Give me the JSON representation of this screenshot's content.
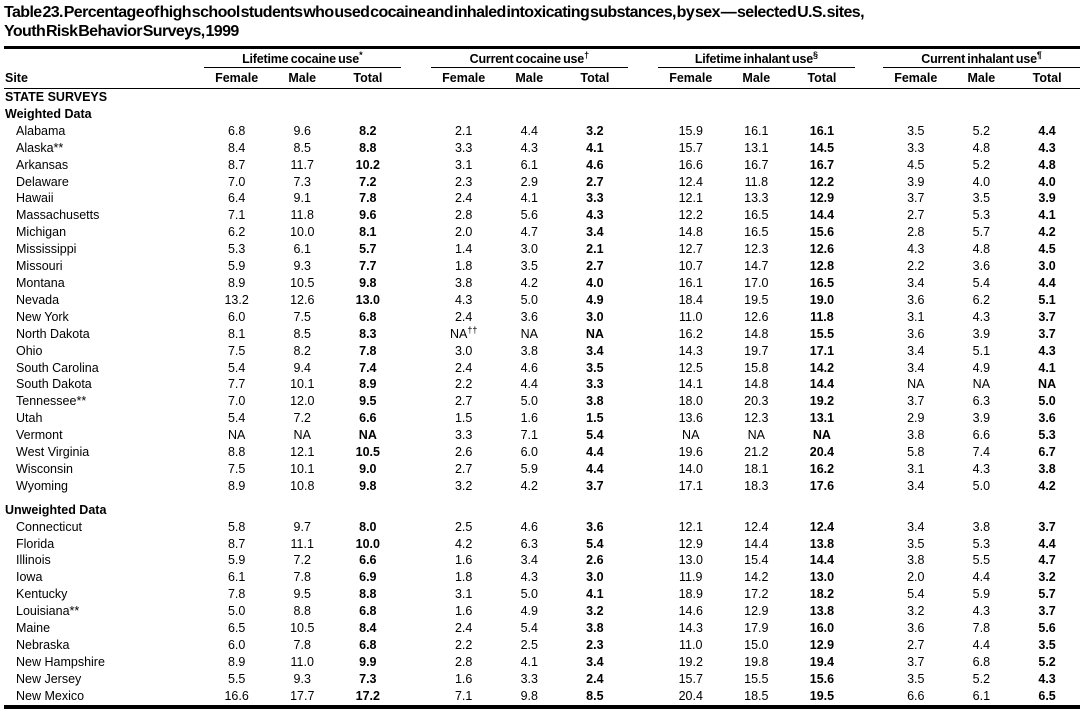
{
  "title": {
    "line1": "Table 23. Percentage of high school students who used cocaine and inhaled intoxicating substances, by sex — selected U.S. sites,",
    "line2": "Youth Risk Behavior Surveys, 1999"
  },
  "table": {
    "site_header": "Site",
    "groups": [
      {
        "label": "Lifetime cocaine use",
        "sup": "*"
      },
      {
        "label": "Current cocaine use",
        "sup": "†"
      },
      {
        "label": "Lifetime inhalant use",
        "sup": "§"
      },
      {
        "label": "Current inhalant use",
        "sup": "¶"
      }
    ],
    "subheaders": [
      "Female",
      "Male",
      "Total"
    ],
    "rows": [
      {
        "type": "section",
        "label": "STATE SURVEYS"
      },
      {
        "type": "section",
        "label": "Weighted Data"
      },
      {
        "type": "data",
        "site": "Alabama",
        "values": [
          "6.8",
          "9.6",
          "8.2",
          "2.1",
          "4.4",
          "3.2",
          "15.9",
          "16.1",
          "16.1",
          "3.5",
          "5.2",
          "4.4"
        ]
      },
      {
        "type": "data",
        "site": "Alaska**",
        "values": [
          "8.4",
          "8.5",
          "8.8",
          "3.3",
          "4.3",
          "4.1",
          "15.7",
          "13.1",
          "14.5",
          "3.3",
          "4.8",
          "4.3"
        ]
      },
      {
        "type": "data",
        "site": "Arkansas",
        "values": [
          "8.7",
          "11.7",
          "10.2",
          "3.1",
          "6.1",
          "4.6",
          "16.6",
          "16.7",
          "16.7",
          "4.5",
          "5.2",
          "4.8"
        ]
      },
      {
        "type": "data",
        "site": "Delaware",
        "values": [
          "7.0",
          "7.3",
          "7.2",
          "2.3",
          "2.9",
          "2.7",
          "12.4",
          "11.8",
          "12.2",
          "3.9",
          "4.0",
          "4.0"
        ]
      },
      {
        "type": "data",
        "site": "Hawaii",
        "values": [
          "6.4",
          "9.1",
          "7.8",
          "2.4",
          "4.1",
          "3.3",
          "12.1",
          "13.3",
          "12.9",
          "3.7",
          "3.5",
          "3.9"
        ]
      },
      {
        "type": "data",
        "site": "Massachusetts",
        "values": [
          "7.1",
          "11.8",
          "9.6",
          "2.8",
          "5.6",
          "4.3",
          "12.2",
          "16.5",
          "14.4",
          "2.7",
          "5.3",
          "4.1"
        ]
      },
      {
        "type": "data",
        "site": "Michigan",
        "values": [
          "6.2",
          "10.0",
          "8.1",
          "2.0",
          "4.7",
          "3.4",
          "14.8",
          "16.5",
          "15.6",
          "2.8",
          "5.7",
          "4.2"
        ]
      },
      {
        "type": "data",
        "site": "Mississippi",
        "values": [
          "5.3",
          "6.1",
          "5.7",
          "1.4",
          "3.0",
          "2.1",
          "12.7",
          "12.3",
          "12.6",
          "4.3",
          "4.8",
          "4.5"
        ]
      },
      {
        "type": "data",
        "site": "Missouri",
        "values": [
          "5.9",
          "9.3",
          "7.7",
          "1.8",
          "3.5",
          "2.7",
          "10.7",
          "14.7",
          "12.8",
          "2.2",
          "3.6",
          "3.0"
        ]
      },
      {
        "type": "data",
        "site": "Montana",
        "values": [
          "8.9",
          "10.5",
          "9.8",
          "3.8",
          "4.2",
          "4.0",
          "16.1",
          "17.0",
          "16.5",
          "3.4",
          "5.4",
          "4.4"
        ]
      },
      {
        "type": "data",
        "site": "Nevada",
        "values": [
          "13.2",
          "12.6",
          "13.0",
          "4.3",
          "5.0",
          "4.9",
          "18.4",
          "19.5",
          "19.0",
          "3.6",
          "6.2",
          "5.1"
        ]
      },
      {
        "type": "data",
        "site": "New York",
        "values": [
          "6.0",
          "7.5",
          "6.8",
          "2.4",
          "3.6",
          "3.0",
          "11.0",
          "12.6",
          "11.8",
          "3.1",
          "4.3",
          "3.7"
        ]
      },
      {
        "type": "data",
        "site": "North Dakota",
        "values": [
          "8.1",
          "8.5",
          "8.3",
          "NA††",
          "NA",
          "NA",
          "16.2",
          "14.8",
          "15.5",
          "3.6",
          "3.9",
          "3.7"
        ]
      },
      {
        "type": "data",
        "site": "Ohio",
        "values": [
          "7.5",
          "8.2",
          "7.8",
          "3.0",
          "3.8",
          "3.4",
          "14.3",
          "19.7",
          "17.1",
          "3.4",
          "5.1",
          "4.3"
        ]
      },
      {
        "type": "data",
        "site": "South Carolina",
        "values": [
          "5.4",
          "9.4",
          "7.4",
          "2.4",
          "4.6",
          "3.5",
          "12.5",
          "15.8",
          "14.2",
          "3.4",
          "4.9",
          "4.1"
        ]
      },
      {
        "type": "data",
        "site": "South Dakota",
        "values": [
          "7.7",
          "10.1",
          "8.9",
          "2.2",
          "4.4",
          "3.3",
          "14.1",
          "14.8",
          "14.4",
          "NA",
          "NA",
          "NA"
        ]
      },
      {
        "type": "data",
        "site": "Tennessee**",
        "values": [
          "7.0",
          "12.0",
          "9.5",
          "2.7",
          "5.0",
          "3.8",
          "18.0",
          "20.3",
          "19.2",
          "3.7",
          "6.3",
          "5.0"
        ]
      },
      {
        "type": "data",
        "site": "Utah",
        "values": [
          "5.4",
          "7.2",
          "6.6",
          "1.5",
          "1.6",
          "1.5",
          "13.6",
          "12.3",
          "13.1",
          "2.9",
          "3.9",
          "3.6"
        ]
      },
      {
        "type": "data",
        "site": "Vermont",
        "values": [
          "NA",
          "NA",
          "NA",
          "3.3",
          "7.1",
          "5.4",
          "NA",
          "NA",
          "NA",
          "3.8",
          "6.6",
          "5.3"
        ]
      },
      {
        "type": "data",
        "site": "West Virginia",
        "values": [
          "8.8",
          "12.1",
          "10.5",
          "2.6",
          "6.0",
          "4.4",
          "19.6",
          "21.2",
          "20.4",
          "5.8",
          "7.4",
          "6.7"
        ]
      },
      {
        "type": "data",
        "site": "Wisconsin",
        "values": [
          "7.5",
          "10.1",
          "9.0",
          "2.7",
          "5.9",
          "4.4",
          "14.0",
          "18.1",
          "16.2",
          "3.1",
          "4.3",
          "3.8"
        ]
      },
      {
        "type": "data",
        "site": "Wyoming",
        "values": [
          "8.9",
          "10.8",
          "9.8",
          "3.2",
          "4.2",
          "3.7",
          "17.1",
          "18.3",
          "17.6",
          "3.4",
          "5.0",
          "4.2"
        ]
      },
      {
        "type": "gap"
      },
      {
        "type": "section",
        "label": "Unweighted Data"
      },
      {
        "type": "data",
        "site": "Connecticut",
        "values": [
          "5.8",
          "9.7",
          "8.0",
          "2.5",
          "4.6",
          "3.6",
          "12.1",
          "12.4",
          "12.4",
          "3.4",
          "3.8",
          "3.7"
        ]
      },
      {
        "type": "data",
        "site": "Florida",
        "values": [
          "8.7",
          "11.1",
          "10.0",
          "4.2",
          "6.3",
          "5.4",
          "12.9",
          "14.4",
          "13.8",
          "3.5",
          "5.3",
          "4.4"
        ]
      },
      {
        "type": "data",
        "site": "Illinois",
        "values": [
          "5.9",
          "7.2",
          "6.6",
          "1.6",
          "3.4",
          "2.6",
          "13.0",
          "15.4",
          "14.4",
          "3.8",
          "5.5",
          "4.7"
        ]
      },
      {
        "type": "data",
        "site": "Iowa",
        "values": [
          "6.1",
          "7.8",
          "6.9",
          "1.8",
          "4.3",
          "3.0",
          "11.9",
          "14.2",
          "13.0",
          "2.0",
          "4.4",
          "3.2"
        ]
      },
      {
        "type": "data",
        "site": "Kentucky",
        "values": [
          "7.8",
          "9.5",
          "8.8",
          "3.1",
          "5.0",
          "4.1",
          "18.9",
          "17.2",
          "18.2",
          "5.4",
          "5.9",
          "5.7"
        ]
      },
      {
        "type": "data",
        "site": "Louisiana**",
        "values": [
          "5.0",
          "8.8",
          "6.8",
          "1.6",
          "4.9",
          "3.2",
          "14.6",
          "12.9",
          "13.8",
          "3.2",
          "4.3",
          "3.7"
        ]
      },
      {
        "type": "data",
        "site": "Maine",
        "values": [
          "6.5",
          "10.5",
          "8.4",
          "2.4",
          "5.4",
          "3.8",
          "14.3",
          "17.9",
          "16.0",
          "3.6",
          "7.8",
          "5.6"
        ]
      },
      {
        "type": "data",
        "site": "Nebraska",
        "values": [
          "6.0",
          "7.8",
          "6.8",
          "2.2",
          "2.5",
          "2.3",
          "11.0",
          "15.0",
          "12.9",
          "2.7",
          "4.4",
          "3.5"
        ]
      },
      {
        "type": "data",
        "site": "New Hampshire",
        "values": [
          "8.9",
          "11.0",
          "9.9",
          "2.8",
          "4.1",
          "3.4",
          "19.2",
          "19.8",
          "19.4",
          "3.7",
          "6.8",
          "5.2"
        ]
      },
      {
        "type": "data",
        "site": "New Jersey",
        "values": [
          "5.5",
          "9.3",
          "7.3",
          "1.6",
          "3.3",
          "2.4",
          "15.7",
          "15.5",
          "15.6",
          "3.5",
          "5.2",
          "4.3"
        ]
      },
      {
        "type": "data",
        "site": "New Mexico",
        "values": [
          "16.6",
          "17.7",
          "17.2",
          "7.1",
          "9.8",
          "8.5",
          "20.4",
          "18.5",
          "19.5",
          "6.6",
          "6.1",
          "6.5"
        ]
      }
    ]
  }
}
